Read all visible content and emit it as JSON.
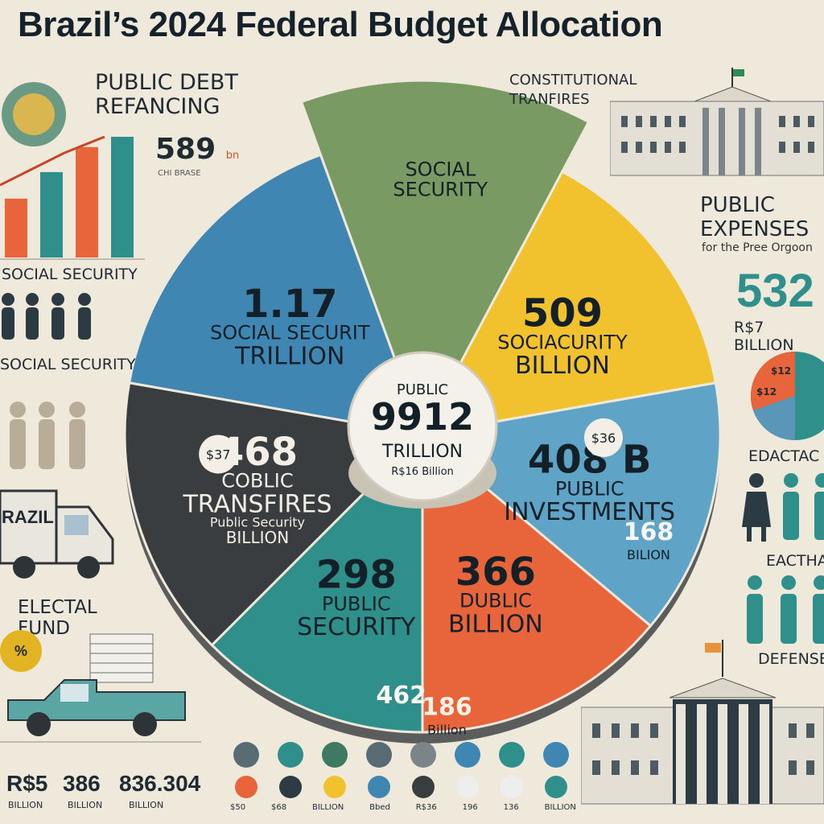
{
  "title": "Brazil’s 2024 Federal Budget Allocation",
  "colors": {
    "teal": "#2f8f8a",
    "blue": "#3f86b3",
    "yellow": "#f2c12e",
    "orange": "#e8643a",
    "green_money": "#7a9a63",
    "charcoal": "#3a3d3f",
    "light_blue": "#5fa3c6",
    "background": "#efe9dc"
  },
  "chart_data": {
    "type": "pie",
    "center": {
      "label": "PUBLIC",
      "value": "9912",
      "unit": "TRILLION",
      "sub": "R$16 Billion"
    },
    "slices": [
      {
        "value_label": "1.17",
        "title_line1": "SOCIAL SECURIT",
        "title_line2": "TRILLION",
        "color": "#3f86b3",
        "icon": "coins-icon"
      },
      {
        "value_label": "",
        "title_line1": "SOCIAL",
        "title_line2": "SECURITY",
        "color": "#7a9a63",
        "icon": "money-stack-icon"
      },
      {
        "value_label": "509",
        "title_line1": "SOCIACURITY",
        "title_line2": "BILLION",
        "color": "#f2c12e",
        "icon": "coin-icon"
      },
      {
        "value_label": "408 B",
        "title_line1": "PUBLIC",
        "title_line2": "INVESTMENTS",
        "badge": "$36",
        "extra_value": "168",
        "extra_unit": "BILION",
        "color": "#5fa3c6",
        "icon": "coin-icon"
      },
      {
        "value_label": "366",
        "title_line1": "DUBLIC",
        "title_line2": "BILLION",
        "extra_value": "186",
        "extra_unit": "Billion",
        "color": "#e8643a",
        "icon": "coin-icon"
      },
      {
        "value_label": "298",
        "title_line1": "PUBLIC",
        "title_line2": "SECURITY",
        "extra_value": "462",
        "color": "#2f8f8a",
        "icon": "coin-icon"
      },
      {
        "value_label": "468",
        "title_line1": "COBLIC",
        "title_line2": "TRANSFIRES",
        "sub": "Public Security",
        "badge": "$37",
        "unit": "BILLION",
        "color": "#3a3d3f",
        "icon": "coin-icon"
      }
    ]
  },
  "left_panel": {
    "debt_title": "PUBLIC DEBT REFANCING",
    "debt_value": "589",
    "debt_unit": "bn",
    "debt_sub": "CHI BRASE",
    "bar_chart_values": [
      40,
      58,
      75,
      82
    ],
    "bar_colors": [
      "#e8643a",
      "#2f8f8a",
      "#e8643a",
      "#2f8f8a"
    ],
    "social_security_1": "SOCIAL SECURITY",
    "social_security_2": "SOCIAL SECURITY",
    "truck_text": "RAZIL",
    "electoral_title": "ELECTAL FUND",
    "electoral_badge": "%"
  },
  "right_panel": {
    "transfers_title": "CONSTITUTIONAL TRANFIRES",
    "public_expenses_title": "PUBLIC EXPENSES",
    "public_expenses_sub": "for the Pree Orgoon",
    "public_expenses_value": "532",
    "public_expenses_unit": "R$7 BILLION",
    "education_1": "EDACTAC",
    "education_2": "EACTHAR",
    "defense": "DEFENSE",
    "mini_pie_labels": [
      "$12",
      "$12"
    ]
  },
  "bottom_values": [
    {
      "value": "R$5",
      "unit": "BILLION"
    },
    {
      "value": "386",
      "unit": "BILLION"
    },
    {
      "value": "836.304",
      "unit": "BILLION"
    }
  ],
  "bottom_icons": [
    {
      "icon": "hand-icon",
      "label": "$50"
    },
    {
      "icon": "money-icon",
      "label": "$68"
    },
    {
      "icon": "leaf-icon",
      "label": "BILLION"
    },
    {
      "icon": "person-icon",
      "label": "Bbed"
    },
    {
      "icon": "hand-coin-icon",
      "label": "R$36"
    },
    {
      "icon": "building-icon",
      "label": "196"
    },
    {
      "icon": "scale-icon",
      "label": "136"
    },
    {
      "icon": "truck-icon",
      "label": "BILLION"
    }
  ]
}
